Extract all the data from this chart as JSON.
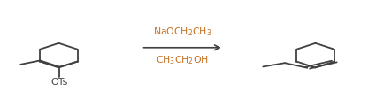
{
  "fig_width": 4.25,
  "fig_height": 1.12,
  "dpi": 100,
  "bg_color": "#ffffff",
  "line_color": "#404040",
  "line_width": 1.3,
  "reagent_color": "#c87020",
  "reagent_line1": "NaOCH$_2$CH$_3$",
  "reagent_line2": "CH$_3$CH$_2$OH",
  "arrow_color": "#404040"
}
